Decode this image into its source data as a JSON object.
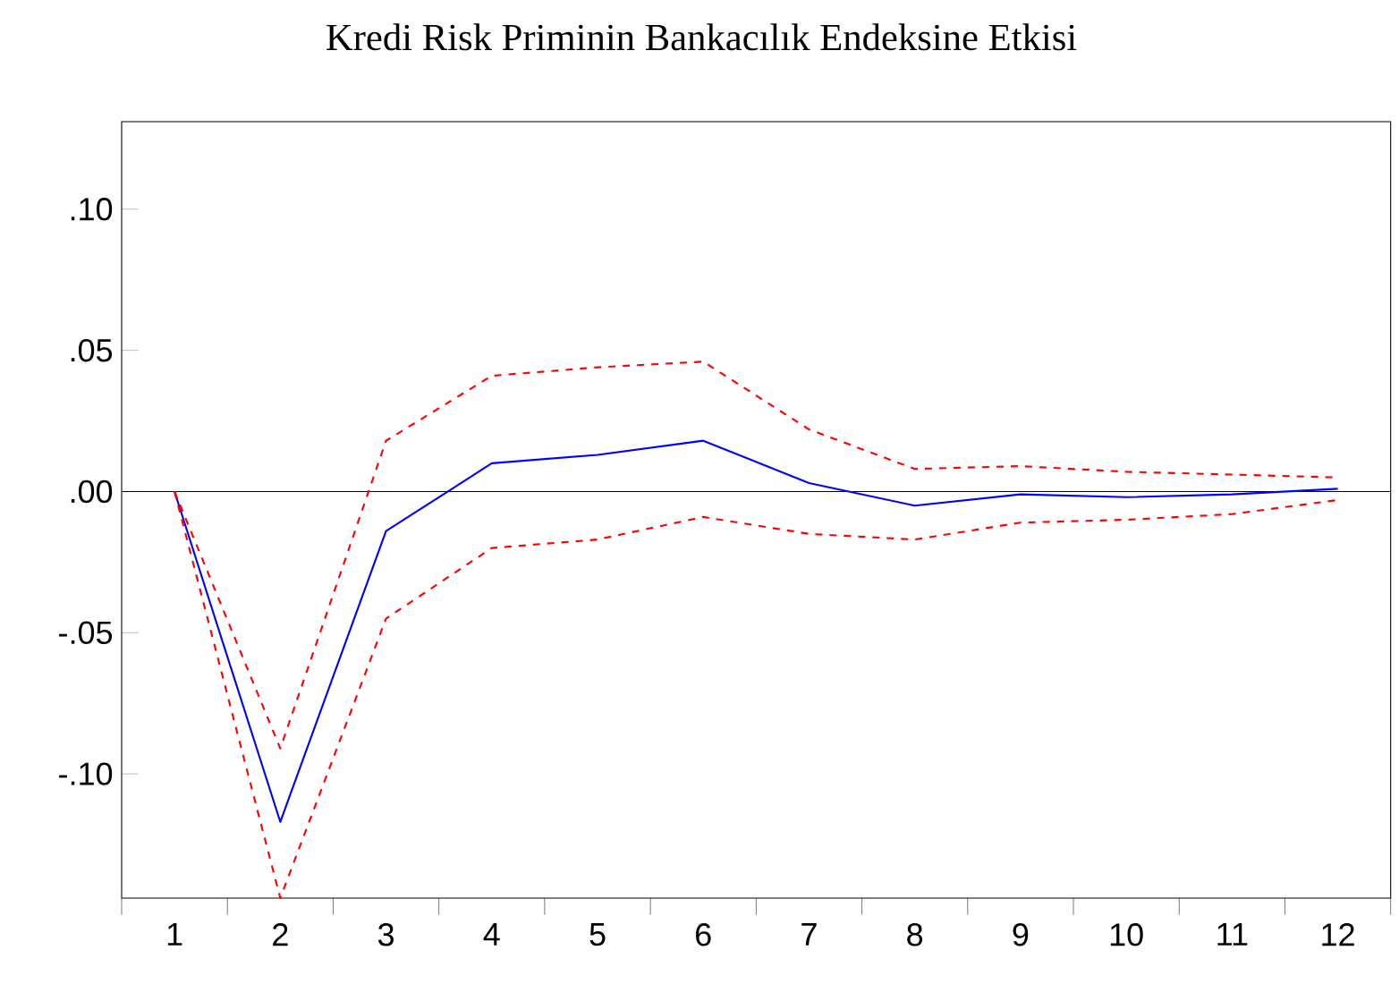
{
  "chart_data": {
    "type": "line",
    "title": "Kredi Risk Priminin Bankacılık Endeksine Etkisi",
    "categories": [
      "1",
      "2",
      "3",
      "4",
      "5",
      "6",
      "7",
      "8",
      "9",
      "10",
      "11",
      "12"
    ],
    "series": [
      {
        "color": "#0000ff",
        "line_style": "solid",
        "values": [
          0,
          -0.117,
          -0.014,
          0.01,
          0.013,
          0.018,
          0.003,
          -0.005,
          -0.001,
          -0.002,
          -0.001,
          0.001
        ]
      },
      {
        "color": "#ff0000",
        "line_style": "dashed",
        "values": [
          0,
          -0.091,
          0.018,
          0.041,
          0.044,
          0.046,
          0.022,
          0.008,
          0.009,
          0.007,
          0.006,
          0.005
        ]
      },
      {
        "color": "#ff0000",
        "line_style": "dashed",
        "values": [
          0,
          -0.144,
          -0.045,
          -0.02,
          -0.017,
          -0.009,
          -0.015,
          -0.017,
          -0.011,
          -0.01,
          -0.008,
          -0.003
        ]
      }
    ],
    "ylim": [
      -0.144,
      0.131
    ],
    "yticks": [
      {
        "value": -0.1,
        "label": "-.10"
      },
      {
        "value": -0.05,
        "label": "-.05"
      },
      {
        "value": 0,
        "label": ".00"
      },
      {
        "value": 0.05,
        "label": ".05"
      },
      {
        "value": 0.1,
        "label": ".10"
      }
    ],
    "ref_lines": [
      {
        "axis": "y",
        "value": 0,
        "color": "#000000"
      }
    ],
    "grid": false,
    "marker": "none"
  }
}
